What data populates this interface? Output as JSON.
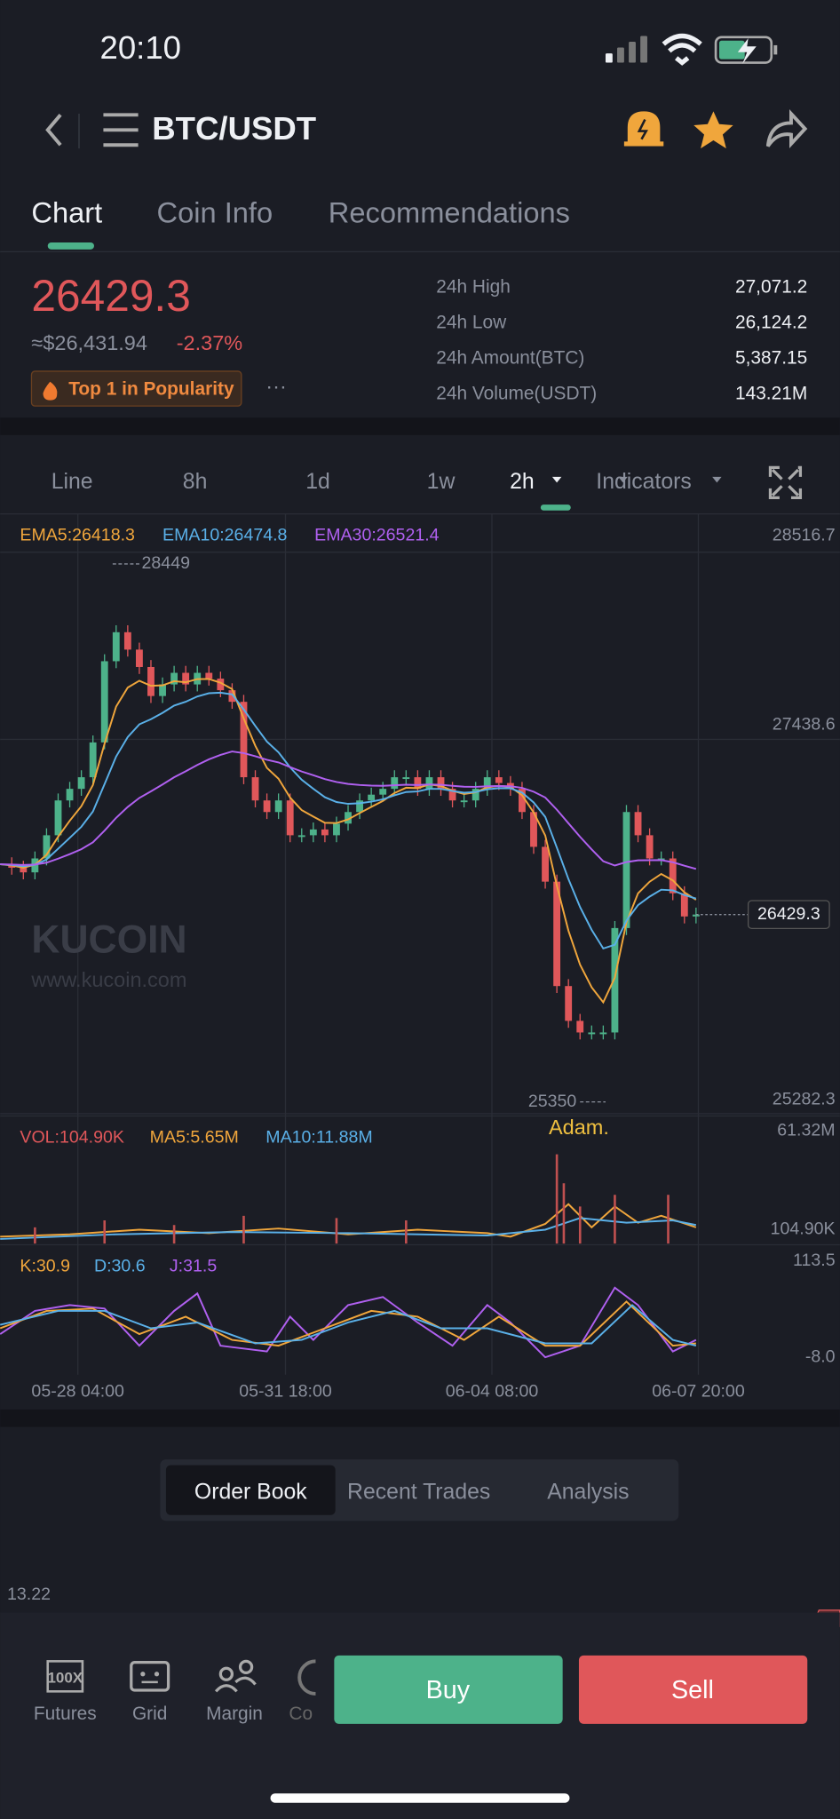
{
  "status_bar": {
    "time": "20:10"
  },
  "header": {
    "title": "BTC/USDT"
  },
  "tabs": [
    "Chart",
    "Coin Info",
    "Recommendations"
  ],
  "price": {
    "last": "26429.3",
    "usd": "≈$26,431.94",
    "change": "-2.37%",
    "badge": "Top 1 in Popularity",
    "more": "···"
  },
  "stats": [
    {
      "label": "24h High",
      "value": "27,071.2"
    },
    {
      "label": "24h Low",
      "value": "26,124.2"
    },
    {
      "label": "24h Amount(BTC)",
      "value": "5,387.15"
    },
    {
      "label": "24h Volume(USDT)",
      "value": "143.21M"
    }
  ],
  "intervals": [
    "Line",
    "8h",
    "1d",
    "1w",
    "2h",
    "Indicators"
  ],
  "chart": {
    "type": "candlestick",
    "legend": [
      "EMA5:26418.3",
      "EMA10:26474.8",
      "EMA30:26521.4"
    ],
    "ylim": [
      25282.3,
      28516.7
    ],
    "yticks": [
      28516.7,
      27438.6,
      25282.3
    ],
    "high": 28449.0,
    "low": 25350.0,
    "current": 26429.3,
    "watermark": "KUCOIN",
    "watermark_url": "www.kucoin.com",
    "closes": [
      26719.1,
      26699.1,
      26672.4,
      26752.6,
      26886.2,
      27086.7,
      27153.5,
      27220.4,
      27420.9,
      27888.7,
      28055.7,
      27955.5,
      27855.3,
      27688.2,
      27755.0,
      27821.8,
      27755.0,
      27821.8,
      27788.4,
      27721.6,
      27654.8,
      27220.4,
      27086.7,
      27019.9,
      27086.7,
      26886.2,
      26886.2,
      26919.6,
      26886.2,
      26953.1,
      27019.9,
      27086.7,
      27120.1,
      27153.5,
      27220.4,
      27220.4,
      27153.5,
      27220.4,
      27153.5,
      27086.7,
      27086.7,
      27153.5,
      27220.4,
      27187.0,
      27153.5,
      27019.9,
      26819.4,
      26618.9,
      26017.4,
      25816.9,
      25750.1,
      25750.1,
      25750.1,
      26351.6,
      27019.9,
      26886.2,
      26752.6,
      26752.6,
      26552.1,
      26418.4,
      26429.3
    ],
    "xlabels": [
      "05-28 04:00",
      "05-31 18:00",
      "06-04 08:00",
      "06-07 20:00"
    ]
  },
  "volume": {
    "legend": [
      "VOL:104.90K",
      "MA5:5.65M",
      "MA10:11.88M"
    ],
    "axis_top": "61.32M",
    "axis_bottom": "104.90K",
    "annotation": "Adam."
  },
  "kdj": {
    "legend": [
      "K:30.9",
      "D:30.6",
      "J:31.5"
    ],
    "axis_top": "113.5",
    "axis_bottom": "-8.0"
  },
  "sub_tabs": [
    "Order Book",
    "Recent Trades",
    "Analysis"
  ],
  "order_book": {
    "first": "13.22"
  },
  "bottom_nav": [
    "Futures",
    "Grid",
    "Margin",
    "Co"
  ],
  "buttons": {
    "buy": "Buy",
    "sell": "Sell"
  }
}
